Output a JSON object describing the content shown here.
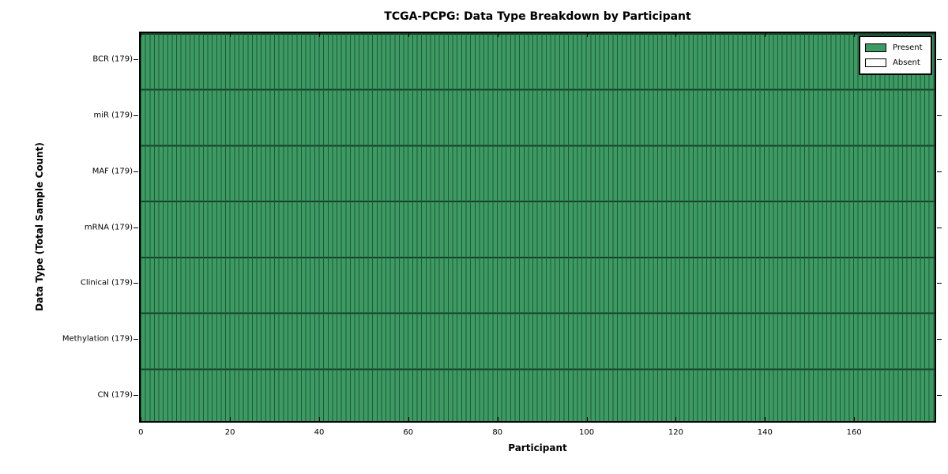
{
  "chart_data": {
    "type": "heatmap",
    "title": "TCGA-PCPG: Data Type Breakdown by Participant",
    "xlabel": "Participant",
    "ylabel": "Data Type (Total Sample Count)",
    "n_participants": 179,
    "x_range": [
      -0.4,
      178.4
    ],
    "x_ticks": [
      0,
      20,
      40,
      60,
      80,
      100,
      120,
      140,
      160
    ],
    "rows": [
      {
        "label": "BCR (179)",
        "data_type": "BCR",
        "total_samples": 179,
        "present_count": 179,
        "absent_count": 0
      },
      {
        "label": "miR (179)",
        "data_type": "miR",
        "total_samples": 179,
        "present_count": 179,
        "absent_count": 0
      },
      {
        "label": "MAF (179)",
        "data_type": "MAF",
        "total_samples": 179,
        "present_count": 179,
        "absent_count": 0
      },
      {
        "label": "mRNA (179)",
        "data_type": "mRNA",
        "total_samples": 179,
        "present_count": 179,
        "absent_count": 0
      },
      {
        "label": "Clinical (179)",
        "data_type": "Clinical",
        "total_samples": 179,
        "present_count": 179,
        "absent_count": 0
      },
      {
        "label": "Methylation (179)",
        "data_type": "Methylation",
        "total_samples": 179,
        "present_count": 179,
        "absent_count": 0
      },
      {
        "label": "CN (179)",
        "data_type": "CN",
        "total_samples": 179,
        "present_count": 179,
        "absent_count": 0
      }
    ],
    "legend": {
      "position": "upper right",
      "items": [
        {
          "label": "Present",
          "color": "#3d9a63"
        },
        {
          "label": "Absent",
          "color": "#ffffff"
        }
      ]
    },
    "colors": {
      "present_fill": "#3d9a63",
      "cell_edge": "#1d5838",
      "row_divider": "#163f28",
      "axis_border": "#000000",
      "background": "#ffffff"
    }
  }
}
